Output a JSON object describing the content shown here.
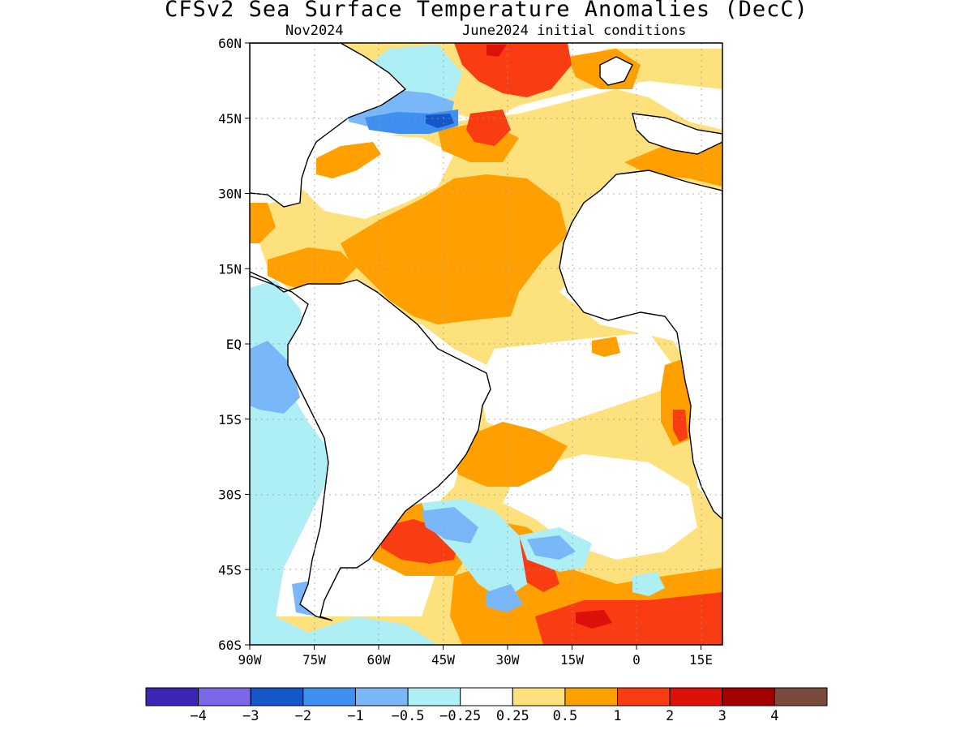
{
  "title": "CFSv2 Sea Surface Temperature Anomalies (DecC)",
  "subtitle_left": "Nov2024",
  "subtitle_right": "June2024 initial conditions",
  "map": {
    "lon_range": [
      -90,
      20
    ],
    "lat_range": [
      -60,
      60
    ],
    "lat_labels": [
      {
        "lat": 60,
        "text": "60N"
      },
      {
        "lat": 45,
        "text": "45N"
      },
      {
        "lat": 30,
        "text": "30N"
      },
      {
        "lat": 15,
        "text": "15N"
      },
      {
        "lat": 0,
        "text": "EQ"
      },
      {
        "lat": -15,
        "text": "15S"
      },
      {
        "lat": -30,
        "text": "30S"
      },
      {
        "lat": -45,
        "text": "45S"
      },
      {
        "lat": -60,
        "text": "60S"
      }
    ],
    "lon_labels": [
      {
        "lon": -90,
        "text": "90W"
      },
      {
        "lon": -75,
        "text": "75W"
      },
      {
        "lon": -60,
        "text": "60W"
      },
      {
        "lon": -45,
        "text": "45W"
      },
      {
        "lon": -30,
        "text": "30W"
      },
      {
        "lon": -15,
        "text": "15W"
      },
      {
        "lon": 0,
        "text": "0"
      },
      {
        "lon": 15,
        "text": "15E"
      }
    ]
  },
  "colorbar": {
    "colors": [
      "#3a25b4",
      "#7b68e8",
      "#1556c9",
      "#3e8fef",
      "#79b7f9",
      "#aeeef5",
      "#ffffff",
      "#fde17c",
      "#ffa000",
      "#fa3c12",
      "#de1109",
      "#a50000",
      "#7a4b3d"
    ],
    "labels": [
      "−4",
      "−3",
      "−2",
      "−1",
      "−0.5",
      "−0.25",
      "0.25",
      "0.5",
      "1",
      "2",
      "3",
      "4"
    ]
  }
}
